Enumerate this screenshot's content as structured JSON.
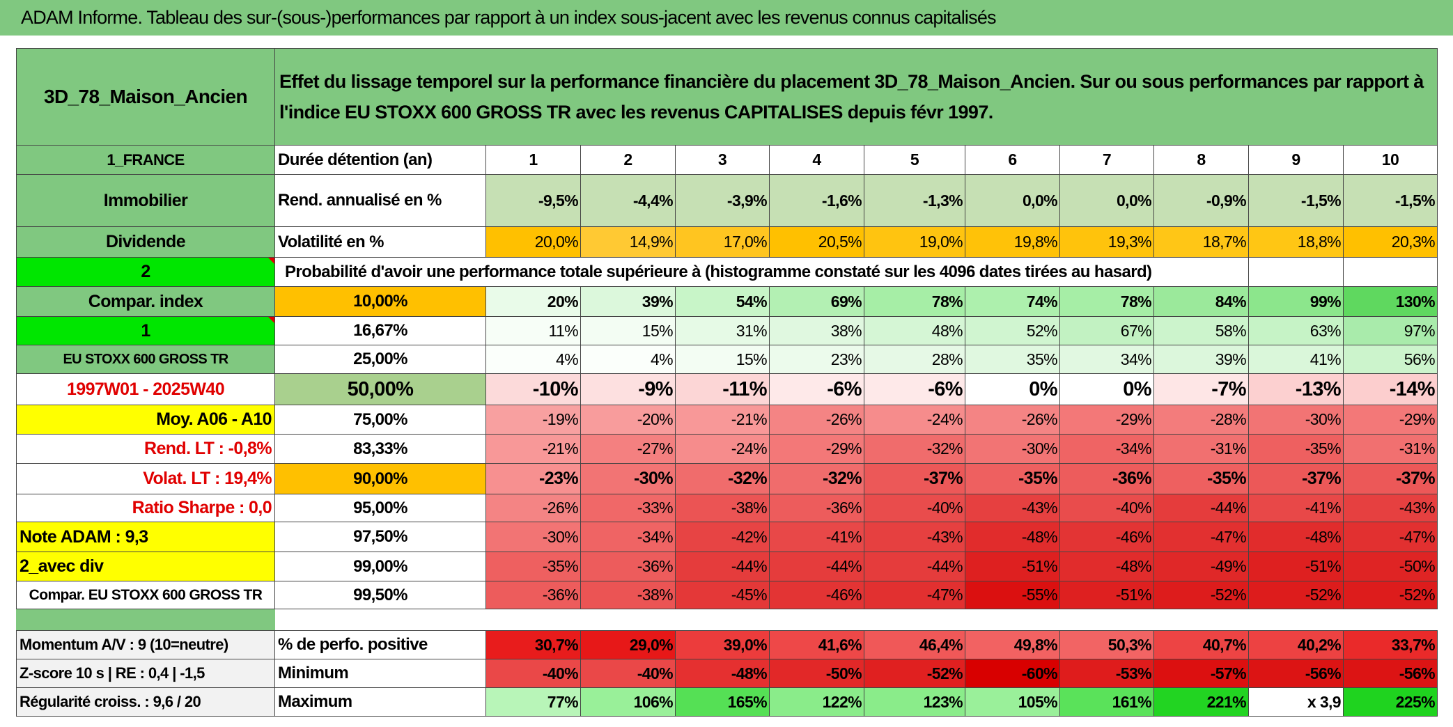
{
  "header": {
    "title": "ADAM Informe. Tableau des sur-(sous-)performances par rapport à un index sous-jacent avec les revenus connus capitalisés"
  },
  "table": {
    "name": "3D_78_Maison_Ancien",
    "description": "Effet du lissage temporel sur la performance financière du placement 3D_78_Maison_Ancien. Sur ou sous performances par rapport à l'indice EU STOXX 600 GROSS TR avec les revenus CAPITALISES depuis févr 1997.",
    "rows": [
      {
        "label": "1_FRANCE",
        "name": "Durée détention (an)",
        "cells": [
          "1",
          "2",
          "3",
          "4",
          "5",
          "6",
          "7",
          "8",
          "9",
          "10"
        ],
        "colors": [
          "#ffffff",
          "#ffffff",
          "#ffffff",
          "#ffffff",
          "#ffffff",
          "#ffffff",
          "#ffffff",
          "#ffffff",
          "#ffffff",
          "#ffffff"
        ]
      },
      {
        "label": "Immobilier",
        "name": "Rend. annualisé en %",
        "cells": [
          "-9,5%",
          "-4,4%",
          "-3,9%",
          "-1,6%",
          "-1,3%",
          "0,0%",
          "0,0%",
          "-0,9%",
          "-1,5%",
          "-1,5%"
        ],
        "colors": [
          "#c6e0b4",
          "#c6e0b4",
          "#c6e0b4",
          "#c6e0b4",
          "#c6e0b4",
          "#c6e0b4",
          "#c6e0b4",
          "#c6e0b4",
          "#c6e0b4",
          "#c6e0b4"
        ]
      },
      {
        "label": "Dividende",
        "name": "Volatilité en %",
        "cells": [
          "20,0%",
          "14,9%",
          "17,0%",
          "20,5%",
          "19,0%",
          "19,8%",
          "19,3%",
          "18,7%",
          "18,8%",
          "20,3%"
        ],
        "colors": [
          "#ffc000",
          "#ffc933",
          "#ffc520",
          "#ffc000",
          "#ffc410",
          "#ffc208",
          "#ffc30c",
          "#ffc616",
          "#ffc614",
          "#ffc000"
        ]
      },
      {
        "label": "2",
        "name": "Probabilité d'avoir une performance totale supérieure à (histogramme constaté sur les 4096 dates tirées au hasard)"
      },
      {
        "label": "Compar. index",
        "name": "10,00%",
        "cells": [
          "20%",
          "39%",
          "54%",
          "69%",
          "78%",
          "74%",
          "78%",
          "84%",
          "99%",
          "130%"
        ],
        "colors": [
          "#e9fbe9",
          "#dcf8dc",
          "#c8f5c8",
          "#b3f0b3",
          "#a6eea6",
          "#adf0ad",
          "#a6eea6",
          "#9be99b",
          "#8ce68c",
          "#5fd85f"
        ]
      },
      {
        "label": "1",
        "name": "16,67%",
        "cells": [
          "11%",
          "15%",
          "31%",
          "38%",
          "48%",
          "52%",
          "67%",
          "58%",
          "63%",
          "97%"
        ],
        "colors": [
          "#f7fef7",
          "#f3fdf3",
          "#e6fae6",
          "#e0f8e0",
          "#d5f6d5",
          "#d0f5d0",
          "#c2f2c2",
          "#ccf4cc",
          "#c6f3c6",
          "#a9ebab"
        ]
      },
      {
        "label": "EU STOXX 600 GROSS TR",
        "name": "25,00%",
        "cells": [
          "4%",
          "4%",
          "15%",
          "23%",
          "28%",
          "35%",
          "34%",
          "39%",
          "41%",
          "56%"
        ],
        "colors": [
          "#fbfffb",
          "#fbfffb",
          "#f3fdf3",
          "#ecfbec",
          "#e6f9e6",
          "#e0f8e0",
          "#e1f8e1",
          "#dcf7dc",
          "#daf7da",
          "#ccf4cc"
        ]
      },
      {
        "label": "1997W01 - 2025W40",
        "name": "50,00%",
        "cells": [
          "-10%",
          "-9%",
          "-11%",
          "-6%",
          "-6%",
          "0%",
          "0%",
          "-7%",
          "-13%",
          "-14%"
        ],
        "colors": [
          "#fcdada",
          "#fde0e0",
          "#fcd6d6",
          "#fee9e9",
          "#fee9e9",
          "#ffffff",
          "#ffffff",
          "#fee6e6",
          "#fcd0d0",
          "#fccece"
        ]
      },
      {
        "label": "Moy. A06 - A10",
        "name": "75,00%",
        "cells": [
          "-19%",
          "-20%",
          "-21%",
          "-26%",
          "-24%",
          "-26%",
          "-29%",
          "-28%",
          "-30%",
          "-29%"
        ],
        "colors": [
          "#f8a0a0",
          "#f89c9c",
          "#f89898",
          "#f48484",
          "#f68c8c",
          "#f48484",
          "#f37878",
          "#f37c7c",
          "#f27474",
          "#f37878"
        ]
      },
      {
        "label": "Rend. LT :   -0,8%",
        "name": "83,33%",
        "cells": [
          "-21%",
          "-27%",
          "-24%",
          "-29%",
          "-32%",
          "-30%",
          "-34%",
          "-31%",
          "-35%",
          "-31%"
        ],
        "colors": [
          "#f89898",
          "#f48080",
          "#f68c8c",
          "#f37878",
          "#f06c6c",
          "#f27474",
          "#ef6464",
          "#f17070",
          "#ee6060",
          "#f17070"
        ]
      },
      {
        "label": "Volat. LT :   19,4%",
        "name": "90,00%",
        "cells": [
          "-23%",
          "-30%",
          "-32%",
          "-32%",
          "-37%",
          "-35%",
          "-36%",
          "-35%",
          "-37%",
          "-37%"
        ],
        "colors": [
          "#f79090",
          "#f27474",
          "#f06c6c",
          "#f06c6c",
          "#ec5858",
          "#ee6060",
          "#ed5c5c",
          "#ee6060",
          "#ec5858",
          "#ec5858"
        ]
      },
      {
        "label": "Ratio Sharpe :    0,0",
        "name": "95,00%",
        "cells": [
          "-26%",
          "-33%",
          "-38%",
          "-36%",
          "-40%",
          "-43%",
          "-40%",
          "-44%",
          "-41%",
          "-43%"
        ],
        "colors": [
          "#f48484",
          "#f06868",
          "#eb5454",
          "#ed5c5c",
          "#e94c4c",
          "#e64040",
          "#e94c4c",
          "#e53c3c",
          "#e84848",
          "#e64040"
        ]
      },
      {
        "label": "Note ADAM : 9,3",
        "name": "97,50%",
        "cells": [
          "-30%",
          "-34%",
          "-42%",
          "-41%",
          "-43%",
          "-48%",
          "-46%",
          "-47%",
          "-48%",
          "-47%"
        ],
        "colors": [
          "#f27474",
          "#ef6464",
          "#e74444",
          "#e84848",
          "#e64040",
          "#e12c2c",
          "#e33434",
          "#e23030",
          "#e12c2c",
          "#e23030"
        ]
      },
      {
        "label": "2_avec div",
        "name": "99,00%",
        "cells": [
          "-35%",
          "-36%",
          "-44%",
          "-44%",
          "-44%",
          "-51%",
          "-48%",
          "-49%",
          "-51%",
          "-50%"
        ],
        "colors": [
          "#ee6060",
          "#ed5c5c",
          "#e53c3c",
          "#e53c3c",
          "#e53c3c",
          "#de2020",
          "#e12c2c",
          "#e02828",
          "#de2020",
          "#df2424"
        ]
      },
      {
        "label": "Compar. EU STOXX 600 GROSS TR",
        "name": "99,50%",
        "cells": [
          "-36%",
          "-38%",
          "-45%",
          "-46%",
          "-47%",
          "-55%",
          "-51%",
          "-52%",
          "-52%",
          "-52%"
        ],
        "colors": [
          "#ed5c5c",
          "#eb5454",
          "#e43838",
          "#e33434",
          "#e23030",
          "#db1010",
          "#de2020",
          "#dd1c1c",
          "#dd1c1c",
          "#dd1c1c"
        ]
      },
      {
        "label": "Momentum A/V : 9 (10=neutre)",
        "name": "% de perfo. positive",
        "cells": [
          "30,7%",
          "29,0%",
          "39,0%",
          "41,6%",
          "46,4%",
          "49,8%",
          "50,3%",
          "40,7%",
          "40,2%",
          "33,7%"
        ],
        "colors": [
          "#e81c1c",
          "#e71818",
          "#ec3c3c",
          "#ee4848",
          "#f05858",
          "#f26262",
          "#f26464",
          "#ed4444",
          "#ed4242",
          "#ea2a2a"
        ]
      },
      {
        "label": "Z-score 10 s | RE : 0,4 | -1,5",
        "name": "Minimum",
        "cells": [
          "-40%",
          "-40%",
          "-48%",
          "-50%",
          "-52%",
          "-60%",
          "-53%",
          "-57%",
          "-56%",
          "-56%"
        ],
        "colors": [
          "#ea4848",
          "#ea4848",
          "#e53030",
          "#e22828",
          "#e02020",
          "#d80000",
          "#df1c1c",
          "#dc1010",
          "#dc1414",
          "#dc1414"
        ]
      },
      {
        "label": "Régularité croiss. : 9,6 / 20",
        "name": "Maximum",
        "cells": [
          "77%",
          "106%",
          "165%",
          "122%",
          "123%",
          "105%",
          "161%",
          "221%",
          "x 3,9",
          "225%"
        ],
        "colors": [
          "#b8f5b8",
          "#99f099",
          "#55e055",
          "#8aec8a",
          "#8aec8a",
          "#9af09a",
          "#5ae25a",
          "#22d422",
          "#ffffff",
          "#1fd31f"
        ]
      }
    ]
  }
}
